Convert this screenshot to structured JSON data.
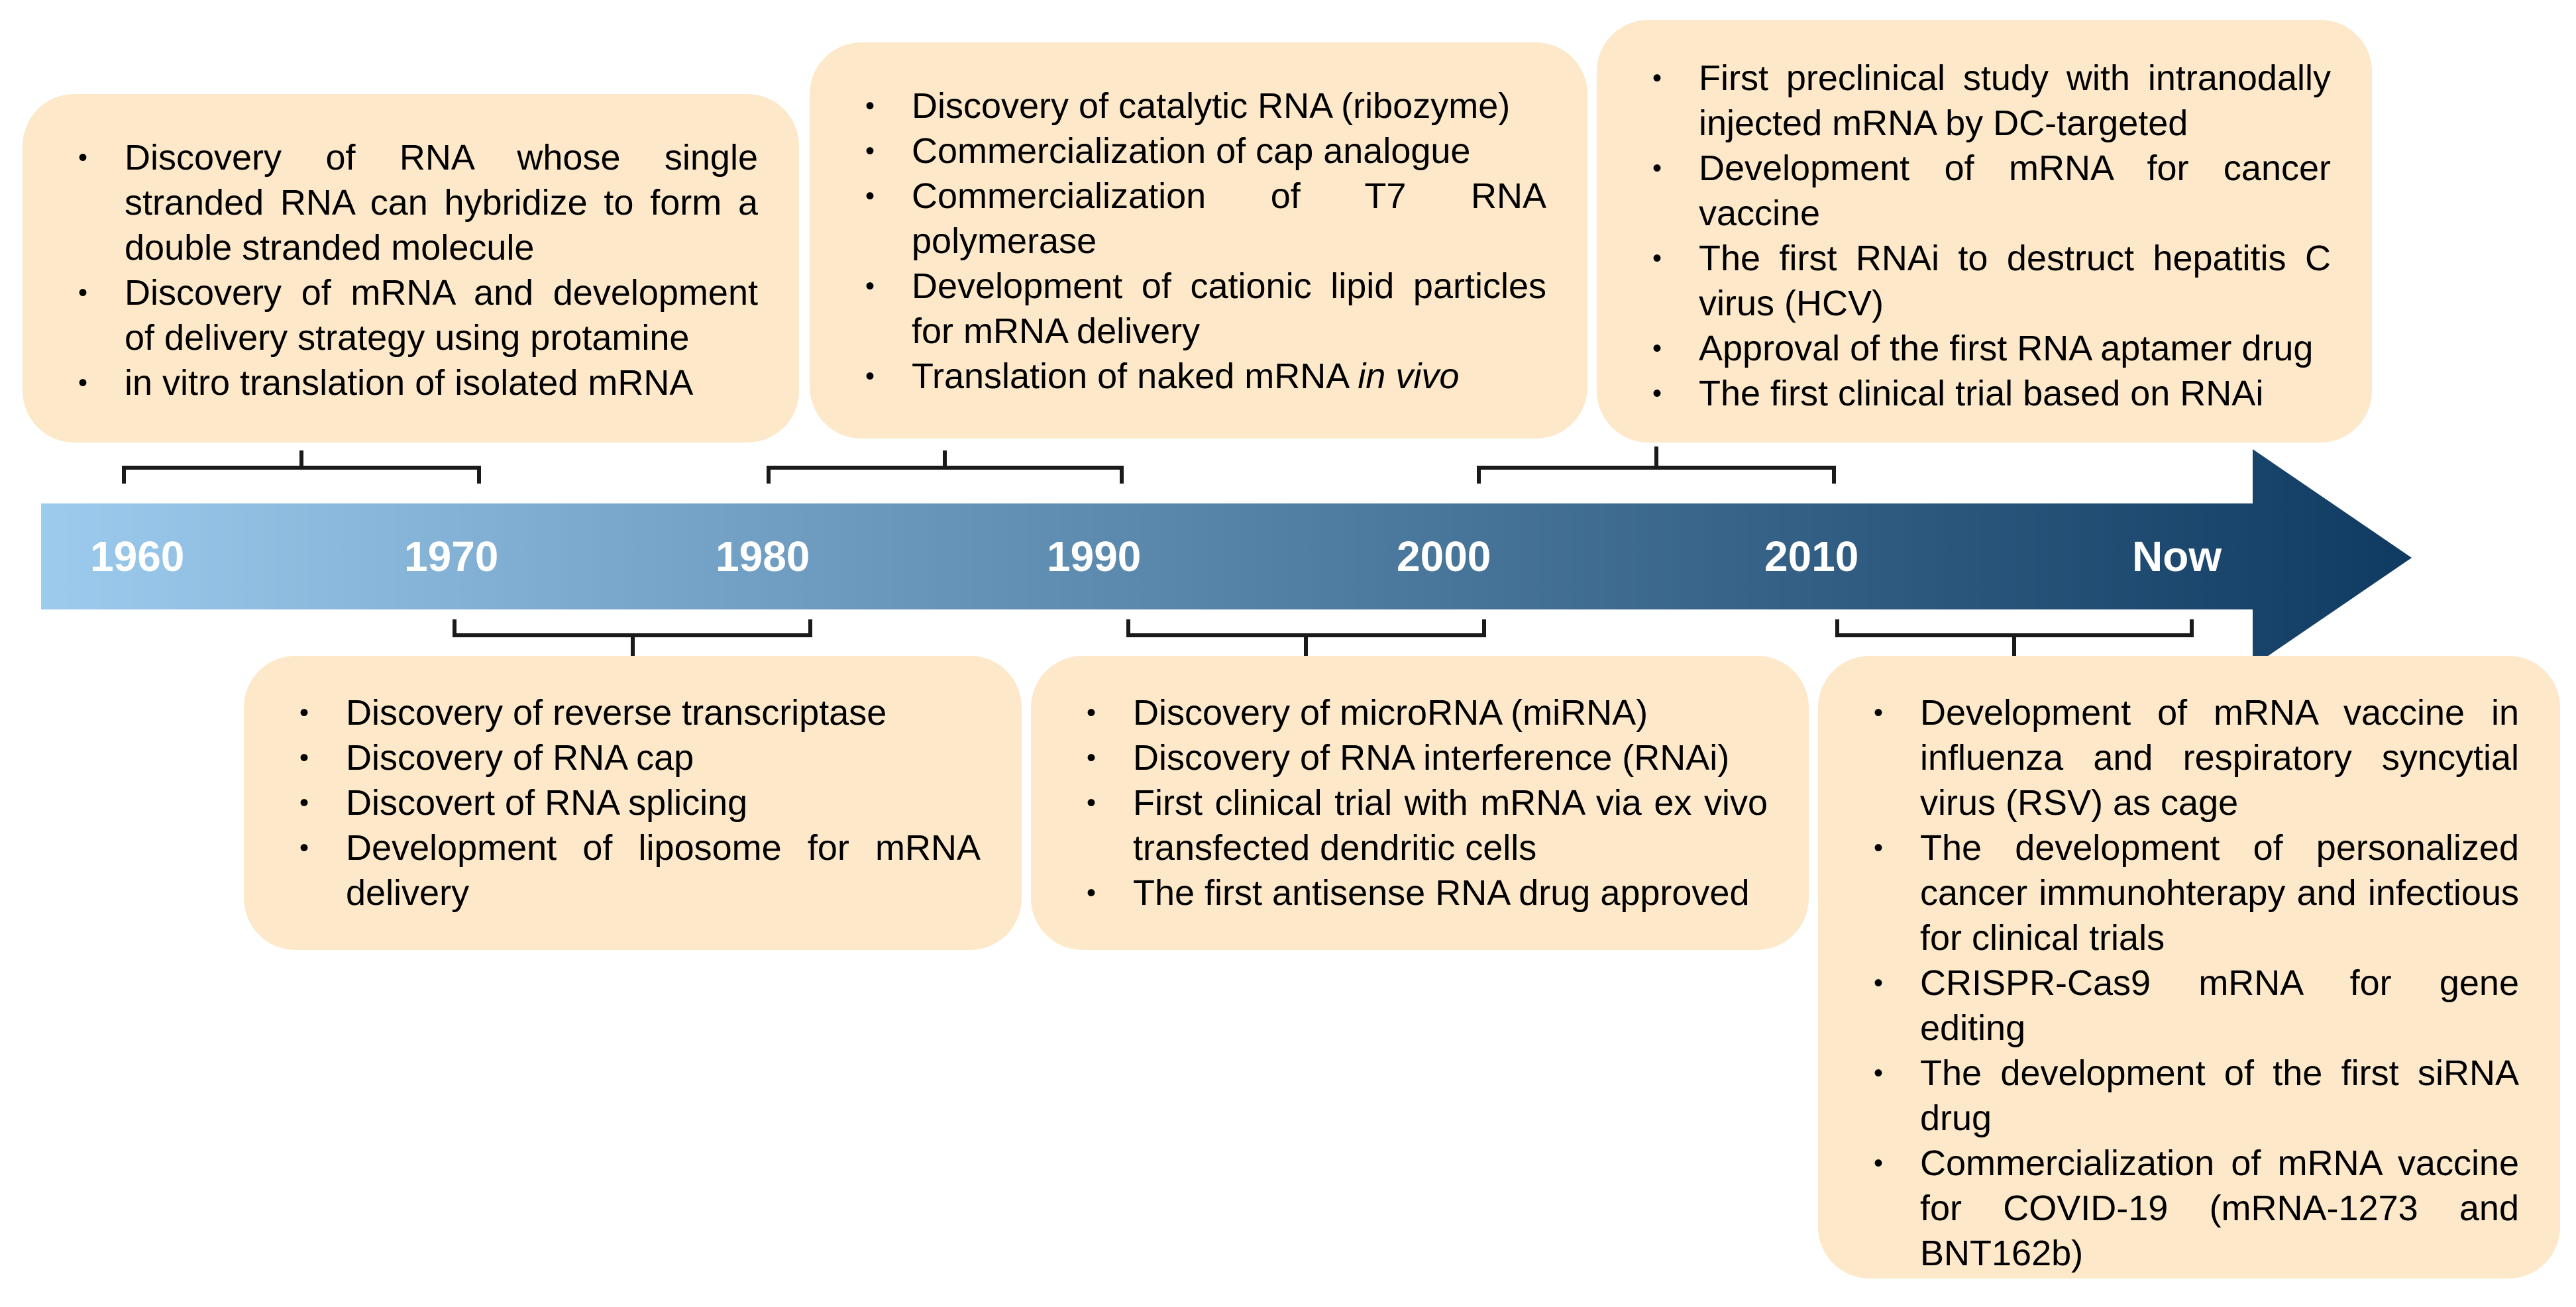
{
  "colors": {
    "arrow_start": "#9ccbee",
    "arrow_end": "#0f3a61",
    "box_fill": "#fde8c9",
    "bracket": "#1a1a1a"
  },
  "timeline": {
    "labels": [
      "1960",
      "1970",
      "1980",
      "1990",
      "2000",
      "2010",
      "Now"
    ]
  },
  "events": {
    "box_1960s": [
      "Discovery of RNA whose single stranded RNA can hybridize to form a double stranded molecule",
      "Discovery of mRNA and development of delivery strategy using protamine",
      "in vitro translation of isolated mRNA"
    ],
    "box_1970s": [
      "Discovery of reverse transcriptase",
      "Discovery of RNA cap",
      "Discovert of RNA splicing",
      "Development of liposome for mRNA delivery"
    ],
    "box_1980s": [
      "Discovery of catalytic RNA (ribozyme)",
      "Commercialization of cap analogue",
      "Commercialization of T7 RNA polymerase",
      "Development of cationic lipid particles for mRNA delivery"
    ],
    "box_1980s_last": {
      "prefix": "Translation of naked mRNA ",
      "italic": "in vivo"
    },
    "box_1990s": [
      "Discovery of microRNA (miRNA)",
      "Discovery of RNA interference (RNAi)",
      "First clinical trial with mRNA via ex vivo transfected dendritic cells",
      "The first antisense RNA drug approved"
    ],
    "box_2000s": [
      "First preclinical study with intranodally injected mRNA by DC-targeted",
      "Development of mRNA for cancer vaccine",
      "The first RNAi to destruct hepatitis C virus (HCV)",
      "Approval of the first RNA aptamer drug",
      "The first clinical trial based on RNAi"
    ],
    "box_2010s": [
      "Development of mRNA vaccine in influenza and respiratory syncytial virus (RSV) as cage",
      "The development of personalized cancer immunohterapy and infectious for clinical trials",
      "CRISPR-Cas9 mRNA for gene editing",
      "The development of the first siRNA drug",
      "Commercialization of mRNA vaccine for COVID-19 (mRNA-1273 and BNT162b)"
    ]
  }
}
